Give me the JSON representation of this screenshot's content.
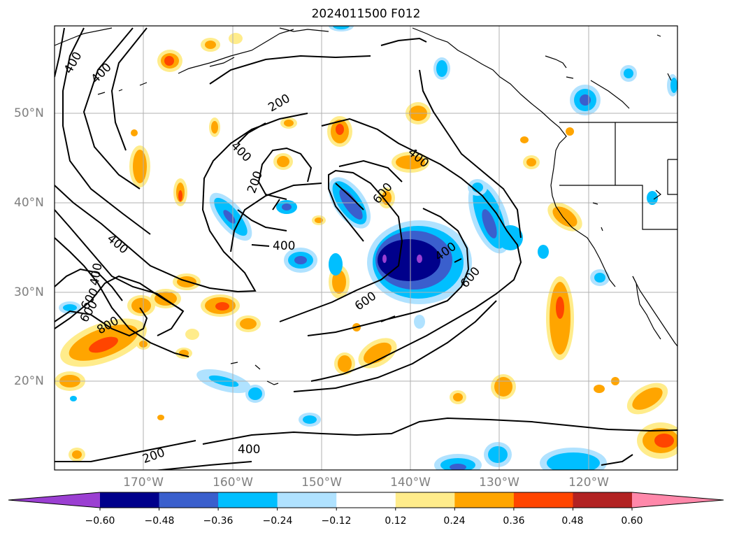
{
  "title": "2024011500 F012",
  "lat_labels": [
    "50°N",
    "40°N",
    "30°N",
    "20°N"
  ],
  "lon_labels": [
    "170°W",
    "160°W",
    "150°W",
    "140°W",
    "130°W",
    "120°W"
  ],
  "contour_labels": [
    "400",
    "400",
    "200",
    "400",
    "200",
    "600",
    "400",
    "400",
    "600",
    "600",
    "400",
    "600",
    "800",
    "400",
    "600",
    "200",
    "400",
    "400"
  ],
  "colorbar": {
    "ticks": [
      "−0.60",
      "−0.48",
      "−0.36",
      "−0.24",
      "−0.12",
      "0.12",
      "0.24",
      "0.36",
      "0.48",
      "0.60"
    ],
    "colors": [
      "#9b3fd2",
      "#00008b",
      "#3a5fcd",
      "#00bfff",
      "#b0e2ff",
      "#ffffff",
      "#ffec8b",
      "#ffa500",
      "#ff4500",
      "#b22222",
      "#ff88aa"
    ]
  }
}
